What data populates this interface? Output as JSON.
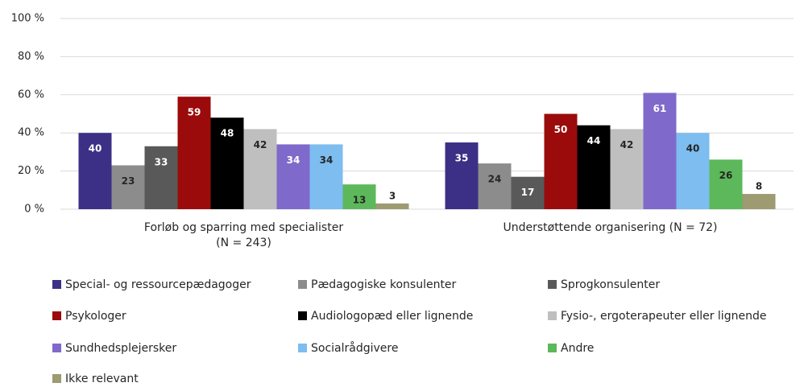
{
  "chart_data": {
    "type": "bar",
    "categories": [
      "Forløb og sparring med specialister (N = 243)",
      "Understøttende organisering (N = 72)"
    ],
    "series": [
      {
        "name": "Special- og ressourcepædagoger",
        "color": "#3b3086",
        "label_color": "#ffffff",
        "values": [
          40,
          35
        ]
      },
      {
        "name": "Pædagogiske konsulenter",
        "color": "#8c8c8c",
        "label_color": "#262626",
        "values": [
          23,
          24
        ]
      },
      {
        "name": "Sprogkonsulenter",
        "color": "#595959",
        "label_color": "#ffffff",
        "values": [
          33,
          17
        ]
      },
      {
        "name": "Psykologer",
        "color": "#9b0b0b",
        "label_color": "#ffffff",
        "values": [
          59,
          50
        ]
      },
      {
        "name": "Audiologopæd eller lignende",
        "color": "#000000",
        "label_color": "#ffffff",
        "values": [
          48,
          44
        ]
      },
      {
        "name": "Fysio-, ergoterapeuter eller lignende",
        "color": "#bfbfbf",
        "label_color": "#262626",
        "values": [
          42,
          42
        ]
      },
      {
        "name": "Sundhedsplejersker",
        "color": "#7f6acb",
        "label_color": "#ffffff",
        "values": [
          34,
          61
        ]
      },
      {
        "name": "Socialrådgivere",
        "color": "#7dbdf0",
        "label_color": "#262626",
        "values": [
          34,
          40
        ]
      },
      {
        "name": "Andre",
        "color": "#5cb85a",
        "label_color": "#262626",
        "values": [
          13,
          26
        ]
      },
      {
        "name": "Ikke relevant",
        "color": "#9e9a72",
        "label_color": "#262626",
        "values": [
          3,
          8
        ]
      }
    ],
    "ylim": [
      0,
      100
    ],
    "yticks": [
      {
        "value": 0,
        "label": "0 %"
      },
      {
        "value": 20,
        "label": "20 %"
      },
      {
        "value": 40,
        "label": "40 %"
      },
      {
        "value": 60,
        "label": "60 %"
      },
      {
        "value": 80,
        "label": "80 %"
      },
      {
        "value": 100,
        "label": "100 %"
      }
    ],
    "grid": true,
    "legend": "bottom"
  }
}
